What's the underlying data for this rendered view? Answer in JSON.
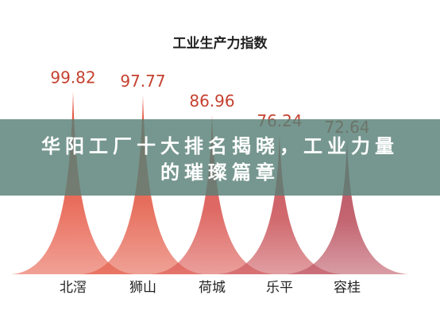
{
  "chart_data": {
    "type": "spike",
    "title": "工业生产力指数",
    "categories": [
      "北滘",
      "狮山",
      "荷城",
      "乐平",
      "容桂"
    ],
    "values": [
      99.82,
      97.77,
      86.96,
      76.24,
      72.64
    ],
    "colors": [
      "#e5533f",
      "#e2543f",
      "#d9504a",
      "#c84f55",
      "#b94c5a"
    ],
    "ylim": [
      0,
      100
    ]
  },
  "banner": {
    "text": "华阳工厂十大排名揭晓，工业力量的璀璨篇章"
  }
}
